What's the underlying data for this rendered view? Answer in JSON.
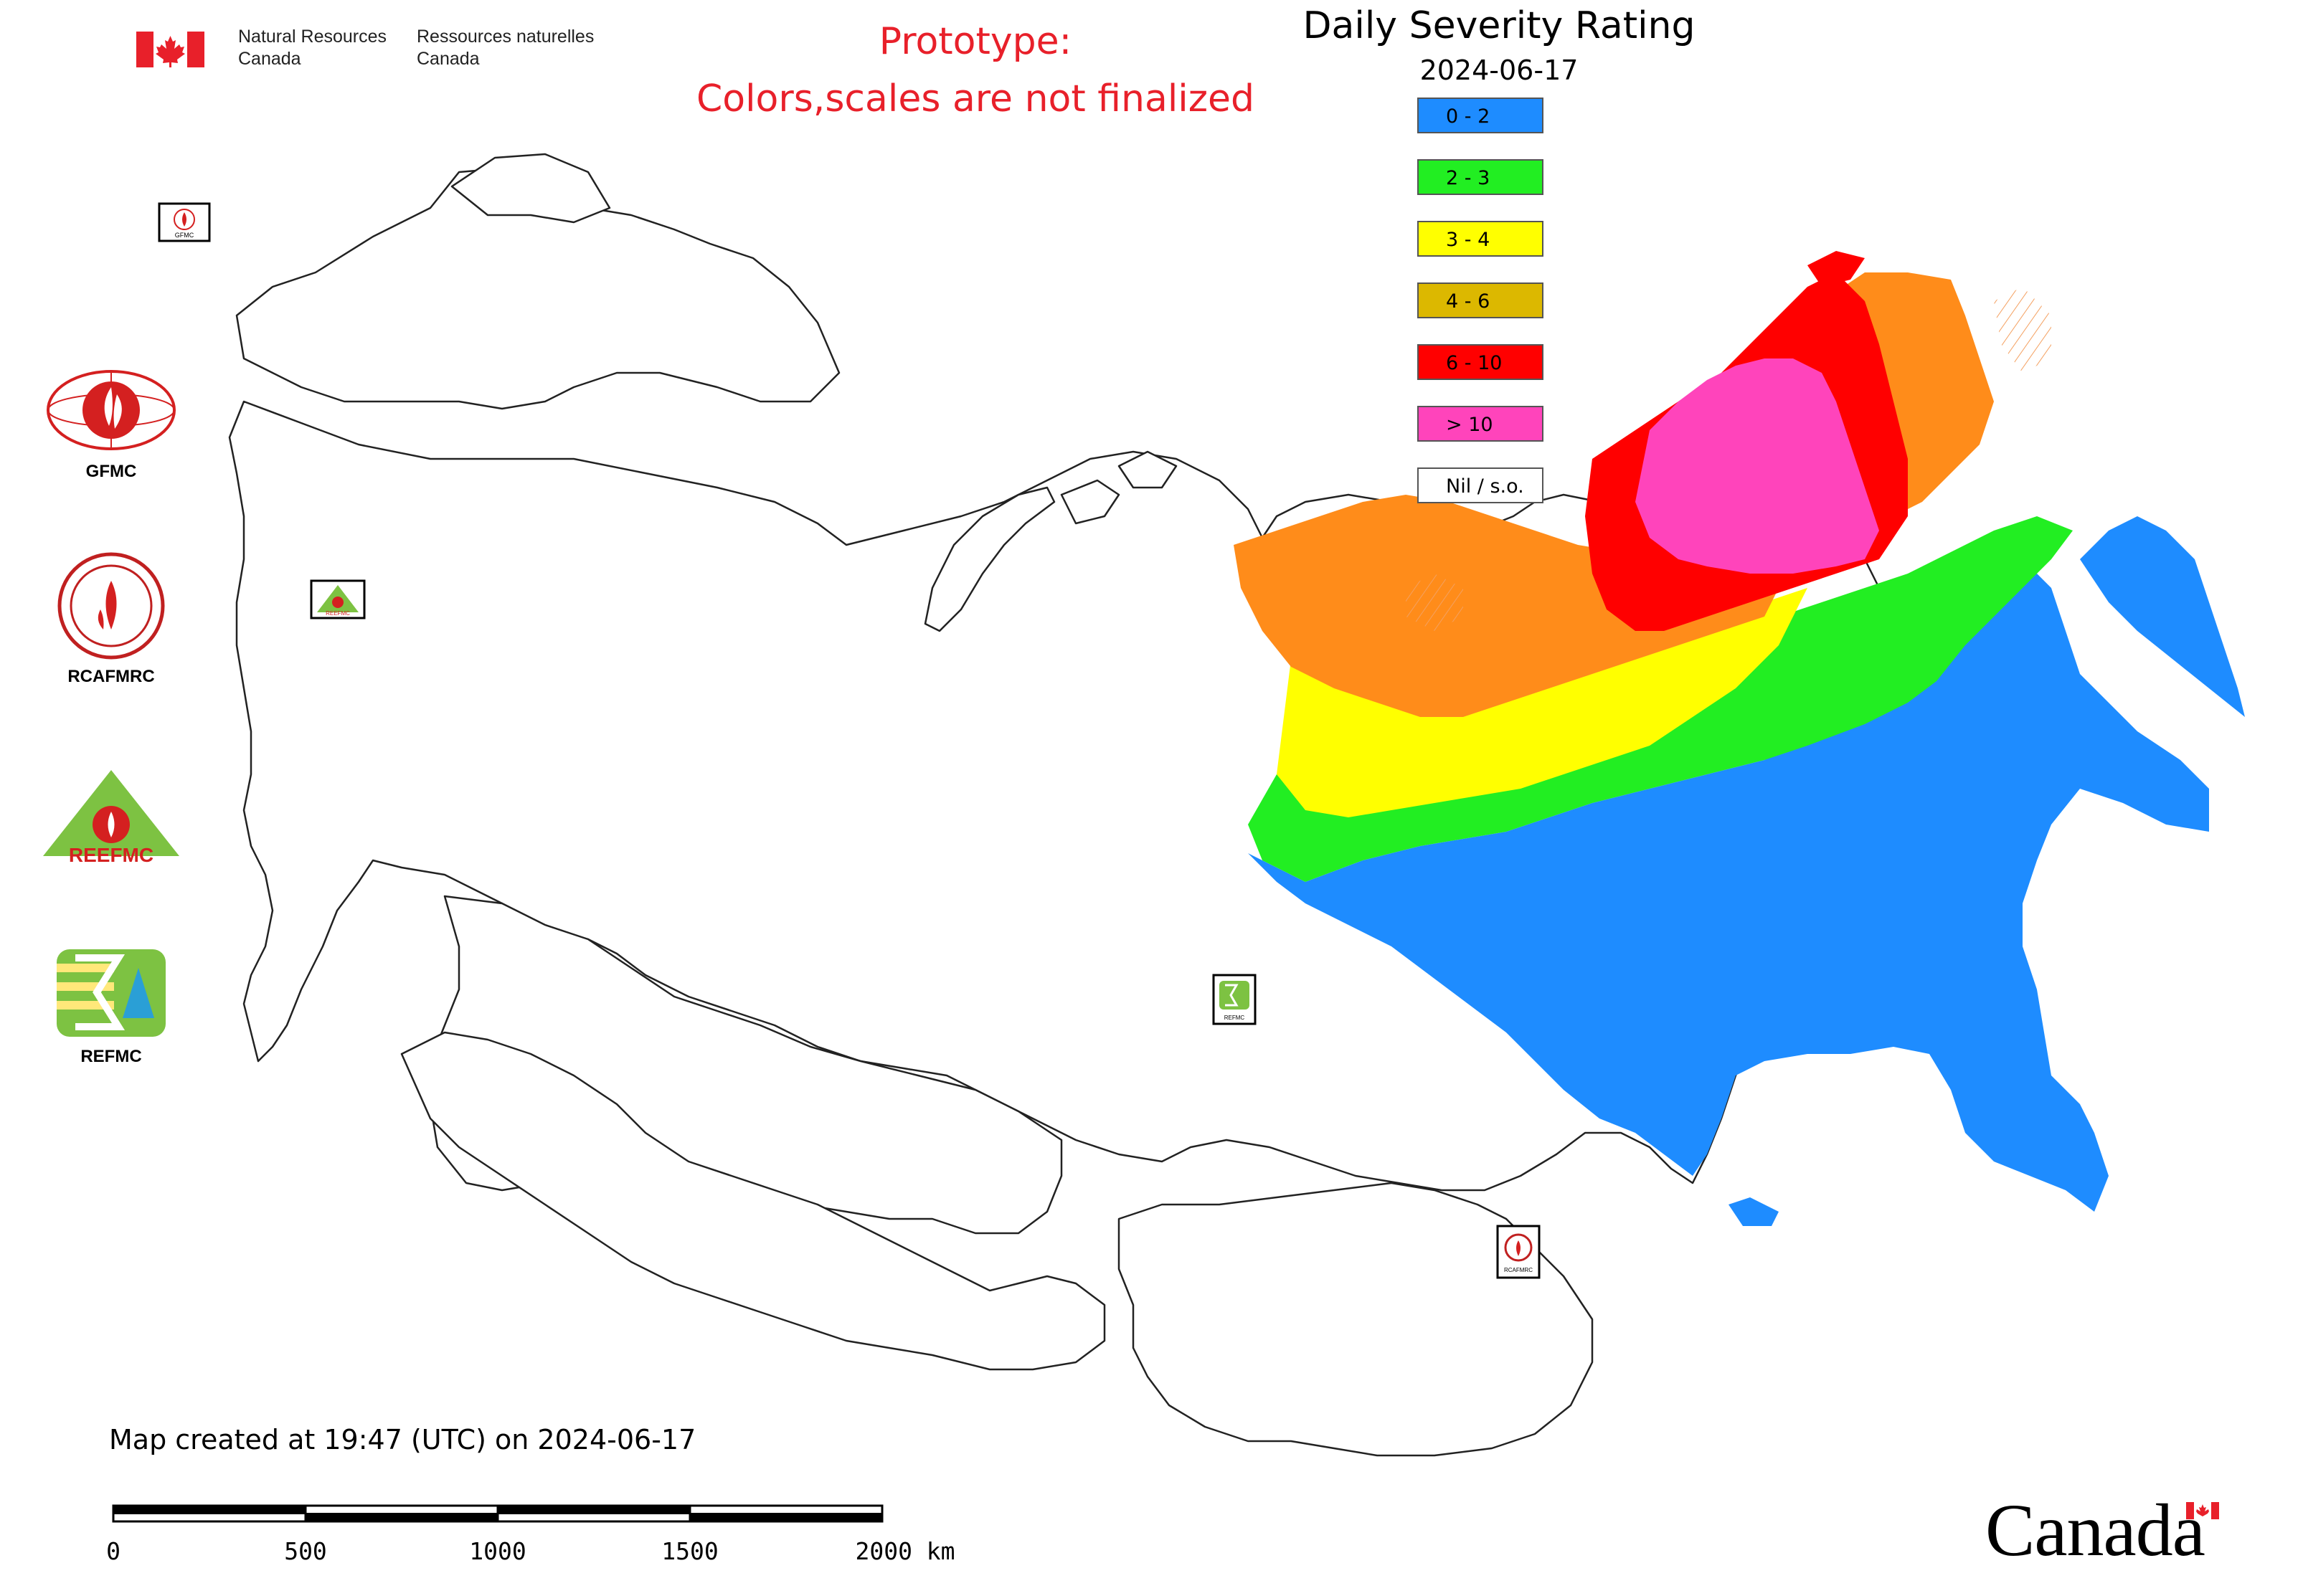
{
  "header": {
    "org_en": "Natural Resources\nCanada",
    "org_fr": "Ressources naturelles\nCanada",
    "notice_line1": "Prototype:",
    "notice_line2": "Colors,scales are not finalized",
    "notice_color": "#e8202a"
  },
  "map": {
    "title": "Daily Severity Rating",
    "date": "2024-06-17"
  },
  "legend": [
    {
      "label": "0 - 2",
      "color": "#1e8cff"
    },
    {
      "label": "2 - 3",
      "color": "#22ee22"
    },
    {
      "label": "3 - 4",
      "color": "#ffff00"
    },
    {
      "label": "4 - 6",
      "color": "#dcb800"
    },
    {
      "label": "6 - 10",
      "color": "#ff0000"
    },
    {
      "label": "> 10",
      "color": "#ff44bb"
    },
    {
      "label": "Nil / s.o.",
      "color": "#ffffff"
    }
  ],
  "logos": [
    {
      "label": "GFMC",
      "icon": "gfmc-logo"
    },
    {
      "label": "RCAFMRC",
      "icon": "rcafmrc-logo"
    },
    {
      "label": "",
      "icon": "reefmc-logo",
      "text_in_logo": "REEFMC"
    },
    {
      "label": "REFMC",
      "icon": "refmc-logo"
    }
  ],
  "map_markers": [
    {
      "label": "GFMC",
      "icon": "gfmc-marker"
    },
    {
      "label": "REEFMC",
      "icon": "reefmc-marker"
    },
    {
      "label": "REFMC",
      "icon": "refmc-marker"
    },
    {
      "label": "RCAFMRC",
      "icon": "rcafmrc-marker"
    }
  ],
  "footer": {
    "created": "Map created at 19:47 (UTC) on 2024-06-17",
    "scale_labels": [
      "0",
      "500",
      "1000",
      "1500",
      "2000 km"
    ],
    "wordmark": "Canada"
  }
}
